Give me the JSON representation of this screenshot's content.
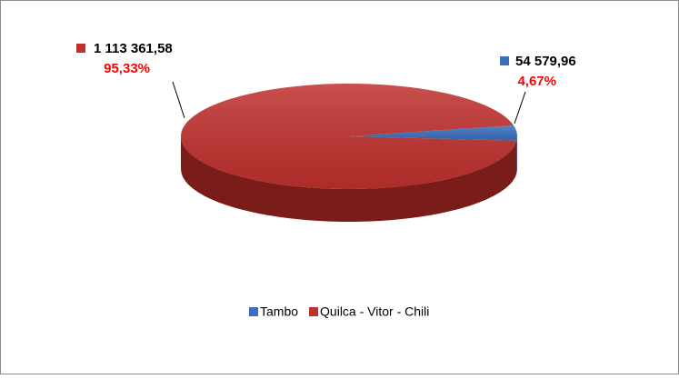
{
  "chart_data": {
    "type": "pie",
    "categories": [
      "Tambo",
      "Quilca - Vitor - Chili"
    ],
    "values": [
      54579.96,
      1113361.58
    ],
    "value_labels": [
      "54 579,96",
      "1 113 361,58"
    ],
    "percentages": [
      4.67,
      95.33
    ],
    "percentage_labels": [
      "4,67%",
      "95,33%"
    ],
    "colors": [
      "#3b6fbe",
      "#c0312e"
    ],
    "side_colors": [
      "#2a4f8a",
      "#7a1c1a"
    ],
    "percentage_color": "#ff0000",
    "legend": "bottom"
  }
}
